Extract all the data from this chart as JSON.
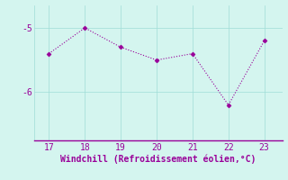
{
  "x": [
    17,
    18,
    19,
    20,
    21,
    22,
    23
  ],
  "y": [
    -5.4,
    -5.0,
    -5.3,
    -5.5,
    -5.4,
    -6.2,
    -5.2
  ],
  "line_color": "#990099",
  "marker": "D",
  "marker_size": 2.5,
  "bg_color": "#d4f5ef",
  "xlabel": "Windchill (Refroidissement éolien,°C)",
  "xlabel_color": "#990099",
  "xlabel_fontsize": 7,
  "tick_color": "#990099",
  "tick_fontsize": 7,
  "yticks": [
    -6,
    -5
  ],
  "ylim": [
    -6.75,
    -4.65
  ],
  "xlim": [
    16.6,
    23.5
  ],
  "grid_color": "#a0ddd8",
  "spine_color": "#990099"
}
